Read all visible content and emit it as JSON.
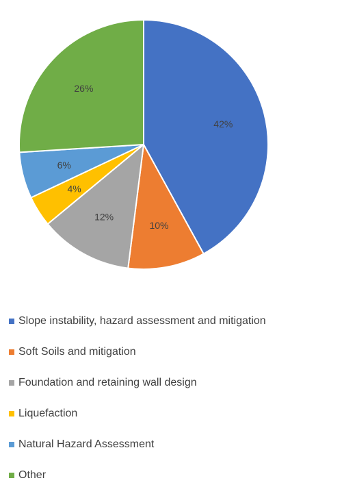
{
  "chart_data": {
    "type": "pie",
    "title": "",
    "slices": [
      {
        "label": "Slope instability, hazard assessment and mitigation",
        "value": 42,
        "display": "42%",
        "color": "#4472C4"
      },
      {
        "label": "Soft Soils and mitigation",
        "value": 10,
        "display": "10%",
        "color": "#ED7D31"
      },
      {
        "label": "Foundation and retaining wall design",
        "value": 12,
        "display": "12%",
        "color": "#A5A5A5"
      },
      {
        "label": "Liquefaction",
        "value": 4,
        "display": "4%",
        "color": "#FFC000"
      },
      {
        "label": "Natural Hazard Assessment",
        "value": 6,
        "display": "6%",
        "color": "#5B9BD5"
      },
      {
        "label": "Other",
        "value": 26,
        "display": "26%",
        "color": "#70AD47"
      }
    ],
    "legend_position": "bottom",
    "start_angle": "12 o'clock",
    "direction": "clockwise"
  }
}
